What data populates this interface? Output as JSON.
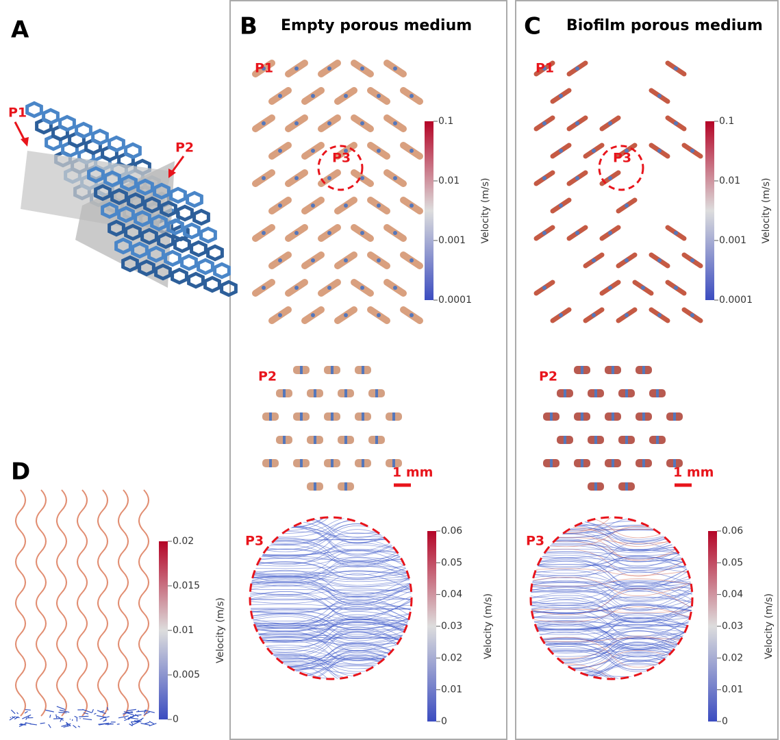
{
  "panel_a": {
    "label": "A",
    "plane_labels": [
      "P1",
      "P2"
    ]
  },
  "panel_b": {
    "label": "B",
    "title": "Empty porous medium",
    "section_labels": [
      "P1",
      "P2",
      "P3"
    ],
    "p3_marker": "P3",
    "scale_bar": "1 mm",
    "colorbar_p1": {
      "label": "Velocity (m/s)",
      "log": true,
      "ticks": [
        0.1,
        0.01,
        0.001,
        0.0001
      ]
    },
    "colorbar_p3": {
      "label": "Velocity (m/s)",
      "log": false,
      "ticks": [
        0.06,
        0.05,
        0.04,
        0.03,
        0.02,
        0.01,
        0
      ]
    }
  },
  "panel_c": {
    "label": "C",
    "title": "Biofilm porous medium",
    "section_labels": [
      "P1",
      "P2",
      "P3"
    ],
    "p3_marker": "P3",
    "scale_bar": "1 mm",
    "colorbar_p1": {
      "label": "Velocity (m/s)",
      "log": true,
      "ticks": [
        0.1,
        0.01,
        0.001,
        0.0001
      ]
    },
    "colorbar_p3": {
      "label": "Velocity (m/s)",
      "log": false,
      "ticks": [
        0.06,
        0.05,
        0.04,
        0.03,
        0.02,
        0.01,
        0
      ]
    }
  },
  "panel_d": {
    "label": "D",
    "colorbar": {
      "label": "Velocity (m/s)",
      "log": false,
      "ticks": [
        0.02,
        0.015,
        0.01,
        0.005,
        0
      ]
    }
  }
}
